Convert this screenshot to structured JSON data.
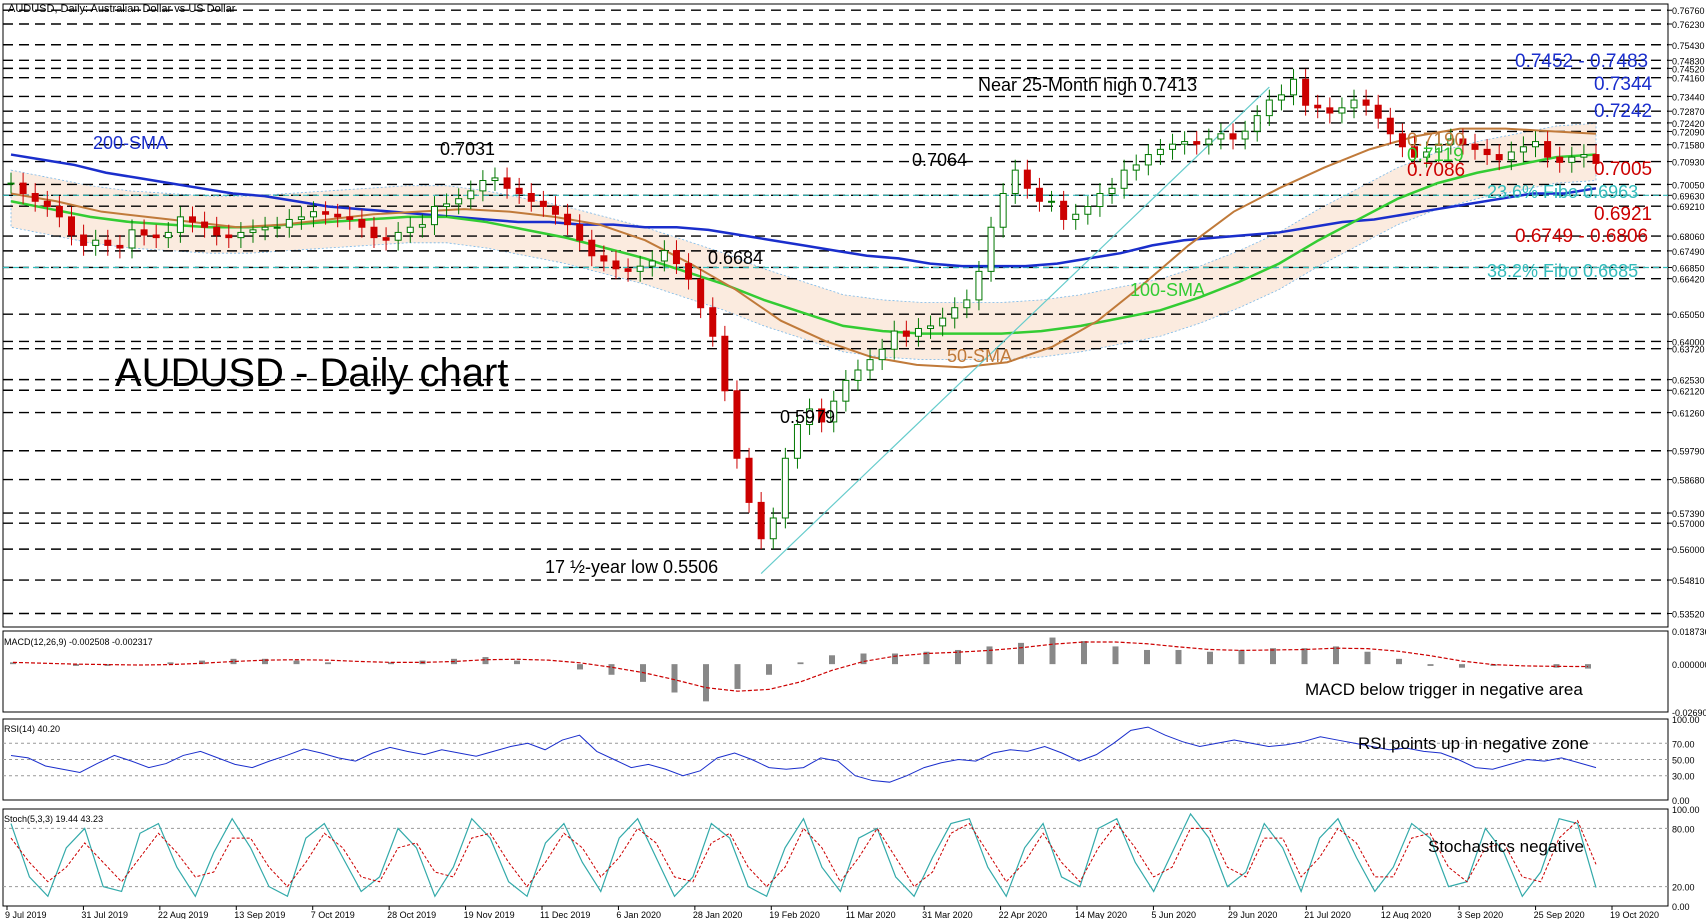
{
  "window": {
    "title": "AUDUSD, Daily:  Australian Dollar vs US Dollar"
  },
  "colors": {
    "candle": "#cc0000",
    "sma200": "#1a2ecc",
    "sma100": "#33cc33",
    "sma50": "#c07a3a",
    "tenkan": "#cc0000",
    "kijun": "#1a2ecc",
    "chikou": "#33cc33",
    "cloud_up": "#7ab8e8",
    "cloud_down": "#f0b080",
    "fibo": "#33bbbb",
    "trend": "#66cccc",
    "macd_hist": "#888888",
    "macd_signal": "#cc0000",
    "rsi": "#1a2ecc",
    "stoch_main": "#33aaaa",
    "stoch_signal": "#cc0000"
  },
  "chart_data": [
    {
      "type": "line",
      "panel": "price",
      "title": "AUDUSD - Daily chart",
      "xlabel": "",
      "ylabel": "",
      "x_ticks": [
        "9 Jul 2019",
        "31 Jul 2019",
        "22 Aug 2019",
        "13 Sep 2019",
        "7 Oct 2019",
        "28 Oct 2019",
        "19 Nov 2019",
        "11 Dec 2019",
        "6 Jan 2020",
        "28 Jan 2020",
        "19 Feb 2020",
        "11 Mar 2020",
        "31 Mar 2020",
        "22 Apr 2020",
        "14 May 2020",
        "5 Jun 2020",
        "29 Jun 2020",
        "21 Jul 2020",
        "12 Aug 2020",
        "3 Sep 2020",
        "25 Sep 2020",
        "19 Oct 2020"
      ],
      "y_ticks": [
        "0.76760",
        "0.76230",
        "0.75430",
        "0.74830",
        "0.74520",
        "0.74160",
        "0.73440",
        "0.72870",
        "0.72420",
        "0.72090",
        "0.71580",
        "0.70930",
        "0.70050",
        "0.69630",
        "0.69210",
        "0.68060",
        "0.67490",
        "0.66850",
        "0.66420",
        "0.65050",
        "0.64000",
        "0.63720",
        "0.62530",
        "0.62120",
        "0.61260",
        "0.59790",
        "0.58680",
        "0.57390",
        "0.57000",
        "0.56000",
        "0.54810",
        "0.53520"
      ],
      "ylim": [
        0.53,
        0.77
      ],
      "series": [
        {
          "name": "AUDUSD",
          "values": [
            0.701,
            0.697,
            0.694,
            0.692,
            0.688,
            0.681,
            0.677,
            0.679,
            0.677,
            0.676,
            0.683,
            0.681,
            0.68,
            0.682,
            0.688,
            0.686,
            0.684,
            0.681,
            0.68,
            0.682,
            0.683,
            0.684,
            0.684,
            0.687,
            0.688,
            0.69,
            0.689,
            0.688,
            0.687,
            0.684,
            0.68,
            0.679,
            0.682,
            0.684,
            0.685,
            0.692,
            0.693,
            0.695,
            0.698,
            0.702,
            0.703,
            0.699,
            0.697,
            0.694,
            0.692,
            0.689,
            0.685,
            0.679,
            0.673,
            0.671,
            0.668,
            0.667,
            0.669,
            0.671,
            0.675,
            0.67,
            0.664,
            0.653,
            0.642,
            0.621,
            0.595,
            0.578,
            0.564,
            0.572,
            0.595,
            0.608,
            0.614,
            0.609,
            0.617,
            0.625,
            0.629,
            0.633,
            0.637,
            0.644,
            0.642,
            0.645,
            0.646,
            0.649,
            0.653,
            0.656,
            0.667,
            0.684,
            0.697,
            0.706,
            0.699,
            0.694,
            0.694,
            0.687,
            0.689,
            0.692,
            0.697,
            0.699,
            0.706,
            0.708,
            0.712,
            0.714,
            0.716,
            0.717,
            0.716,
            0.718,
            0.72,
            0.718,
            0.721,
            0.727,
            0.733,
            0.735,
            0.741,
            0.731,
            0.73,
            0.728,
            0.73,
            0.733,
            0.731,
            0.726,
            0.72,
            0.715,
            0.711,
            0.713,
            0.716,
            0.718,
            0.716,
            0.714,
            0.712,
            0.71,
            0.713,
            0.715,
            0.717,
            0.711,
            0.709,
            0.711,
            0.712,
            0.7086
          ]
        },
        {
          "name": "200-SMA",
          "values": [
            0.712,
            0.71,
            0.708,
            0.705,
            0.703,
            0.701,
            0.699,
            0.697,
            0.696,
            0.694,
            0.692,
            0.691,
            0.69,
            0.689,
            0.688,
            0.687,
            0.686,
            0.686,
            0.685,
            0.685,
            0.684,
            0.684,
            0.683,
            0.681,
            0.679,
            0.677,
            0.675,
            0.673,
            0.672,
            0.67,
            0.669,
            0.669,
            0.669,
            0.67,
            0.672,
            0.674,
            0.677,
            0.679,
            0.68,
            0.681,
            0.682,
            0.684,
            0.686,
            0.687,
            0.689,
            0.691,
            0.693,
            0.695,
            0.697,
            0.697,
            0.699
          ]
        },
        {
          "name": "100-SMA",
          "values": [
            0.694,
            0.691,
            0.688,
            0.686,
            0.685,
            0.684,
            0.684,
            0.685,
            0.686,
            0.687,
            0.688,
            0.688,
            0.686,
            0.683,
            0.68,
            0.676,
            0.672,
            0.667,
            0.662,
            0.656,
            0.651,
            0.646,
            0.644,
            0.643,
            0.643,
            0.643,
            0.644,
            0.646,
            0.649,
            0.652,
            0.657,
            0.663,
            0.67,
            0.679,
            0.687,
            0.695,
            0.701,
            0.705,
            0.708,
            0.711,
            0.712
          ]
        },
        {
          "name": "50-SMA",
          "values": [
            0.697,
            0.694,
            0.69,
            0.688,
            0.686,
            0.684,
            0.685,
            0.687,
            0.689,
            0.69,
            0.691,
            0.69,
            0.688,
            0.685,
            0.679,
            0.67,
            0.66,
            0.648,
            0.64,
            0.634,
            0.631,
            0.63,
            0.632,
            0.638,
            0.648,
            0.662,
            0.677,
            0.69,
            0.699,
            0.707,
            0.714,
            0.719,
            0.722,
            0.722,
            0.721,
            0.72
          ]
        }
      ],
      "annotations": [
        "0.7031",
        "0.6684",
        "0.5979",
        "0.7064",
        "Near 25-Month high 0.7413",
        "17 ½-year low 0.5506",
        "200-SMA",
        "100-SMA",
        "50-SMA"
      ],
      "right_labels": [
        {
          "text": "0.7452 - 0.7483",
          "color": "#1a2ecc"
        },
        {
          "text": "0.7344",
          "color": "#1a2ecc"
        },
        {
          "text": "0.7242",
          "color": "#1a2ecc"
        },
        {
          "text": "0.7190",
          "color": "#c07a3a"
        },
        {
          "text": "0.7119",
          "color": "#33cc33"
        },
        {
          "text": "0.7086",
          "color": "#cc0000"
        },
        {
          "text": "0.7005",
          "color": "#cc0000"
        },
        {
          "text": "23.6% Fibo 0.6963",
          "color": "#33bbbb"
        },
        {
          "text": "0.6921",
          "color": "#cc0000"
        },
        {
          "text": "0.6749 - 0.6806",
          "color": "#cc0000"
        },
        {
          "text": "38.2% Fibo 0.6685",
          "color": "#33bbbb"
        }
      ]
    },
    {
      "type": "bar",
      "panel": "macd",
      "title": "MACD(12,26,9) -0.002508 -0.002317",
      "y_ticks": [
        "0.018736",
        "0.000000",
        "-0.026907"
      ],
      "ylim": [
        -0.027,
        0.0187
      ],
      "series": [
        {
          "name": "MACD",
          "values": [
            0.001,
            0.0,
            -0.001,
            -0.001,
            0.0,
            0.001,
            0.002,
            0.003,
            0.003,
            0.002,
            0.001,
            0.0,
            0.001,
            0.002,
            0.003,
            0.004,
            0.002,
            0.0,
            -0.003,
            -0.006,
            -0.01,
            -0.016,
            -0.021,
            -0.014,
            -0.006,
            0.001,
            0.005,
            0.006,
            0.006,
            0.007,
            0.008,
            0.01,
            0.012,
            0.015,
            0.013,
            0.01,
            0.008,
            0.008,
            0.007,
            0.008,
            0.009,
            0.009,
            0.01,
            0.007,
            0.003,
            -0.001,
            -0.002,
            -0.001,
            0.0,
            -0.002,
            -0.0025
          ]
        }
      ],
      "annotation": "MACD below trigger in negative area"
    },
    {
      "type": "line",
      "panel": "rsi",
      "title": "RSI(14) 40.20",
      "y_ticks": [
        "100.00",
        "70.00",
        "50.00",
        "30.00",
        "0.00"
      ],
      "ylim": [
        0,
        100
      ],
      "series": [
        {
          "name": "RSI(14)",
          "values": [
            55,
            52,
            42,
            38,
            34,
            45,
            55,
            48,
            40,
            45,
            55,
            60,
            52,
            44,
            40,
            48,
            55,
            63,
            58,
            52,
            48,
            58,
            65,
            60,
            56,
            62,
            58,
            54,
            60,
            66,
            70,
            62,
            74,
            80,
            60,
            50,
            40,
            44,
            38,
            30,
            36,
            52,
            58,
            50,
            40,
            38,
            40,
            52,
            48,
            30,
            24,
            22,
            30,
            40,
            46,
            50,
            48,
            58,
            62,
            60,
            66,
            58,
            48,
            56,
            70,
            86,
            90,
            80,
            72,
            66,
            70,
            74,
            70,
            66,
            68,
            72,
            78,
            74,
            70,
            66,
            62,
            64,
            60,
            58,
            50,
            40,
            38,
            44,
            50,
            48,
            52,
            46,
            40
          ]
        }
      ],
      "annotation": "RSI points up in negative zone"
    },
    {
      "type": "line",
      "panel": "stoch",
      "title": "Stoch(5,3,3) 19.44 43.23",
      "y_ticks": [
        "100.00",
        "80.00",
        "20.00",
        "0.00"
      ],
      "ylim": [
        0,
        100
      ],
      "series": [
        {
          "name": "%K",
          "values": [
            85,
            30,
            10,
            60,
            80,
            20,
            15,
            75,
            85,
            40,
            10,
            55,
            90,
            60,
            20,
            10,
            70,
            85,
            50,
            15,
            30,
            80,
            60,
            10,
            40,
            90,
            70,
            25,
            10,
            65,
            85,
            45,
            15,
            70,
            90,
            50,
            10,
            30,
            85,
            70,
            20,
            10,
            60,
            90,
            40,
            15,
            70,
            80,
            30,
            10,
            50,
            85,
            90,
            40,
            10,
            60,
            85,
            30,
            20,
            80,
            90,
            45,
            15,
            55,
            95,
            70,
            20,
            35,
            85,
            60,
            15,
            70,
            90,
            50,
            15,
            40,
            85,
            70,
            20,
            25,
            80,
            55,
            10,
            35,
            90,
            85,
            19
          ]
        },
        {
          "name": "%D",
          "values": [
            70,
            45,
            25,
            40,
            65,
            45,
            25,
            50,
            75,
            55,
            30,
            35,
            70,
            70,
            40,
            20,
            45,
            75,
            60,
            30,
            25,
            60,
            65,
            35,
            30,
            70,
            75,
            45,
            20,
            45,
            75,
            60,
            30,
            50,
            80,
            65,
            30,
            25,
            65,
            75,
            40,
            20,
            40,
            80,
            60,
            25,
            50,
            80,
            50,
            20,
            35,
            75,
            85,
            55,
            25,
            45,
            75,
            45,
            25,
            60,
            85,
            60,
            30,
            40,
            80,
            80,
            40,
            30,
            70,
            70,
            30,
            50,
            80,
            65,
            30,
            30,
            70,
            75,
            40,
            25,
            60,
            65,
            30,
            25,
            70,
            88,
            43
          ]
        }
      ],
      "annotation": "Stochastics negative"
    }
  ]
}
